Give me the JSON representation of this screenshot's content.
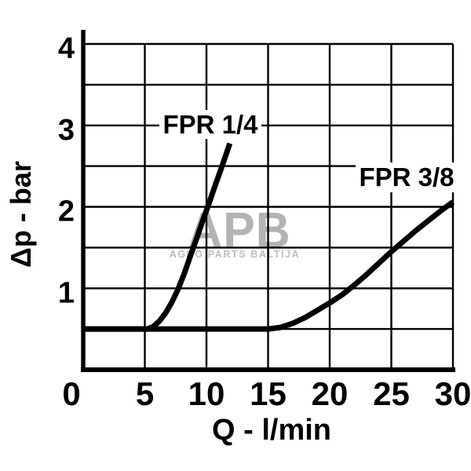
{
  "page": {
    "background": "#ffffff"
  },
  "watermark": {
    "logo_text": "APB",
    "subtitle": "AGRO PARTS BALTIJA",
    "logo_color": "#b3b3b3",
    "subtitle_color": "#bdbdbd"
  },
  "chart_data": {
    "type": "line",
    "title": "",
    "xlabel": "Q - l/min",
    "ylabel": "Δp - bar",
    "xlim": [
      0,
      30
    ],
    "ylim": [
      0,
      4
    ],
    "x_ticks": [
      0,
      5,
      10,
      15,
      20,
      25,
      30
    ],
    "y_ticks": [
      1,
      2,
      3,
      4
    ],
    "x_grid_step": 5,
    "y_grid_step": 0.5,
    "grid": true,
    "legend_position": "inline-labels",
    "axis_color": "#000000",
    "line_color": "#000000",
    "series": [
      {
        "name": "FPR 1/4",
        "x": [
          0,
          5.2,
          5.7,
          6.2,
          6.7,
          7.2,
          7.7,
          8.2,
          8.7,
          9.2,
          9.7,
          10.2,
          10.7,
          11.2,
          11.9
        ],
        "y": [
          0.5,
          0.5,
          0.53,
          0.6,
          0.7,
          0.83,
          0.99,
          1.18,
          1.4,
          1.61,
          1.83,
          2.04,
          2.26,
          2.47,
          2.78
        ]
      },
      {
        "name": "FPR 3/8",
        "x": [
          0,
          15,
          16,
          17,
          18,
          19,
          20,
          21,
          22,
          23,
          24,
          25,
          26,
          27,
          28,
          29,
          30
        ],
        "y": [
          0.5,
          0.5,
          0.52,
          0.57,
          0.64,
          0.73,
          0.82,
          0.92,
          1.04,
          1.17,
          1.31,
          1.45,
          1.58,
          1.71,
          1.83,
          1.95,
          2.06
        ]
      }
    ]
  }
}
